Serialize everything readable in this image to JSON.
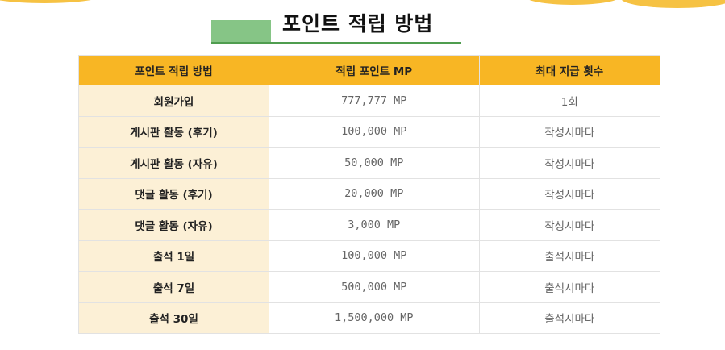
{
  "header": {
    "title": "포인트 적립 방법"
  },
  "table": {
    "headers": [
      "포인트 적립 방법",
      "적립 포인트 MP",
      "최대 지급 횟수"
    ],
    "rows": [
      [
        "회원가입",
        "777,777 MP",
        "1회"
      ],
      [
        "게시판 활동 (후기)",
        "100,000 MP",
        "작성시마다"
      ],
      [
        "게시판 활동 (자유)",
        "50,000 MP",
        "작성시마다"
      ],
      [
        "댓글 활동 (후기)",
        "20,000 MP",
        "작성시마다"
      ],
      [
        "댓글 활동 (자유)",
        "3,000 MP",
        "작성시마다"
      ],
      [
        "출석 1일",
        "100,000 MP",
        "출석시마다"
      ],
      [
        "출석 7일",
        "500,000 MP",
        "출석시마다"
      ],
      [
        "출석 30일",
        "1,500,000 MP",
        "출석시마다"
      ]
    ]
  }
}
